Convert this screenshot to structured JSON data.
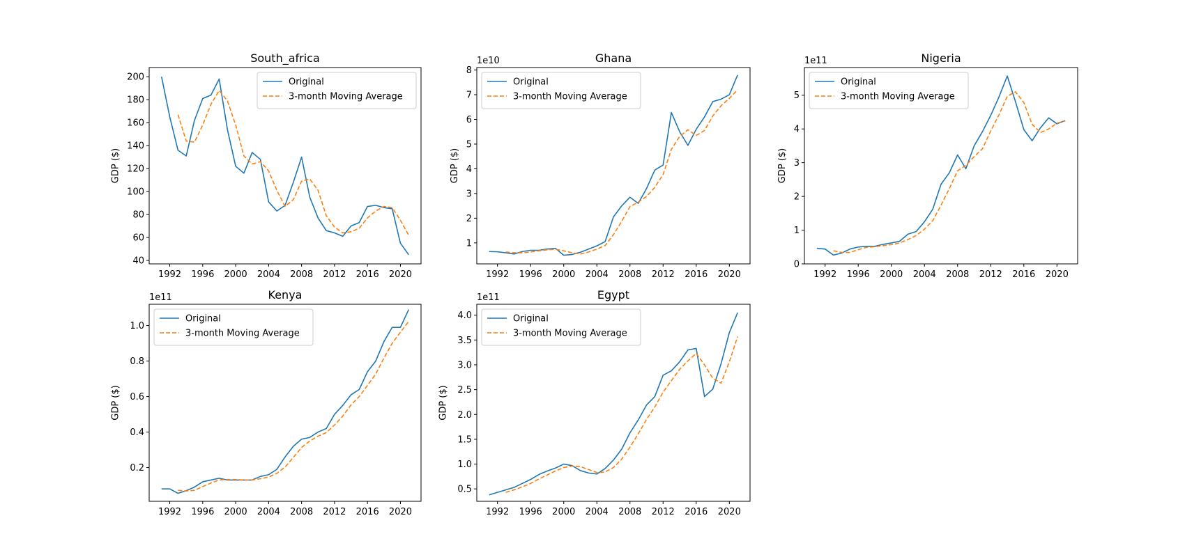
{
  "figure": {
    "legend_labels": [
      "Original",
      "3-month Moving Average"
    ],
    "colors": {
      "original": "#1f77b4",
      "moving_average": "#ff7f0e"
    }
  },
  "chart_data": [
    {
      "type": "line",
      "title": "South_africa",
      "ylabel": "GDP ($)",
      "offset_text": "",
      "xlim": [
        1989.5,
        2022.5
      ],
      "ylim": [
        37,
        208
      ],
      "x_ticks": [
        1992,
        1996,
        2000,
        2004,
        2008,
        2012,
        2016,
        2020
      ],
      "y_ticks": [
        40,
        60,
        80,
        100,
        120,
        140,
        160,
        180,
        200
      ],
      "y_tick_labels": [
        "40",
        "60",
        "80",
        "100",
        "120",
        "140",
        "160",
        "180",
        "200"
      ],
      "legend": "upper right",
      "x": [
        1991,
        1992,
        1993,
        1994,
        1995,
        1996,
        1997,
        1998,
        1999,
        2000,
        2001,
        2002,
        2003,
        2004,
        2005,
        2006,
        2007,
        2008,
        2009,
        2010,
        2011,
        2012,
        2013,
        2014,
        2015,
        2016,
        2017,
        2018,
        2019,
        2020,
        2021
      ],
      "series": [
        {
          "name": "Original",
          "style": "solid",
          "values": [
            200,
            165,
            136,
            131,
            162,
            181,
            184,
            198,
            154,
            122,
            116,
            134,
            128,
            91,
            83,
            88,
            108,
            130,
            95,
            77,
            66,
            64,
            61,
            70,
            73,
            87,
            88,
            86,
            85,
            55,
            45
          ]
        },
        {
          "name": "3-month Moving Average",
          "style": "dashed",
          "values": [
            null,
            null,
            167,
            144,
            143,
            158,
            176,
            188,
            179,
            158,
            131,
            124,
            126,
            118,
            101,
            87,
            93,
            109,
            111,
            101,
            79,
            69,
            64,
            65,
            68,
            77,
            83,
            87,
            86,
            75,
            62
          ]
        }
      ]
    },
    {
      "type": "line",
      "title": "Ghana",
      "ylabel": "GDP ($)",
      "offset_text": "1e10",
      "xlim": [
        1989.5,
        2022.5
      ],
      "ylim": [
        0.15,
        8.1
      ],
      "x_ticks": [
        1992,
        1996,
        2000,
        2004,
        2008,
        2012,
        2016,
        2020
      ],
      "y_ticks": [
        1,
        2,
        3,
        4,
        5,
        6,
        7,
        8
      ],
      "y_tick_labels": [
        "1",
        "2",
        "3",
        "4",
        "5",
        "6",
        "7",
        "8"
      ],
      "legend": "upper left",
      "x": [
        1991,
        1992,
        1993,
        1994,
        1995,
        1996,
        1997,
        1998,
        1999,
        2000,
        2001,
        2002,
        2003,
        2004,
        2005,
        2006,
        2007,
        2008,
        2009,
        2010,
        2011,
        2012,
        2013,
        2014,
        2015,
        2016,
        2017,
        2018,
        2019,
        2020,
        2021
      ],
      "series": [
        {
          "name": "Original",
          "style": "solid",
          "values": [
            0.65,
            0.64,
            0.6,
            0.55,
            0.65,
            0.7,
            0.7,
            0.75,
            0.78,
            0.5,
            0.53,
            0.62,
            0.75,
            0.88,
            1.05,
            2.05,
            2.5,
            2.85,
            2.6,
            3.2,
            3.95,
            4.15,
            6.28,
            5.5,
            4.95,
            5.6,
            6.1,
            6.72,
            6.82,
            7.0,
            7.8
          ]
        },
        {
          "name": "3-month Moving Average",
          "style": "dashed",
          "values": [
            null,
            null,
            0.63,
            0.6,
            0.6,
            0.63,
            0.68,
            0.72,
            0.74,
            0.68,
            0.6,
            0.55,
            0.63,
            0.75,
            0.89,
            1.33,
            1.87,
            2.47,
            2.65,
            2.88,
            3.25,
            3.77,
            4.79,
            5.31,
            5.58,
            5.35,
            5.55,
            6.14,
            6.55,
            6.85,
            7.2
          ]
        }
      ]
    },
    {
      "type": "line",
      "title": "Nigeria",
      "ylabel": "GDP ($)",
      "offset_text": "1e11",
      "xlim": [
        1989.5,
        2022.5
      ],
      "ylim": [
        0,
        5.82
      ],
      "x_ticks": [
        1992,
        1996,
        2000,
        2004,
        2008,
        2012,
        2016,
        2020
      ],
      "y_ticks": [
        0,
        1,
        2,
        3,
        4,
        5
      ],
      "y_tick_labels": [
        "0",
        "1",
        "2",
        "3",
        "4",
        "5"
      ],
      "legend": "upper left",
      "x": [
        1991,
        1992,
        1993,
        1994,
        1995,
        1996,
        1997,
        1998,
        1999,
        2000,
        2001,
        2002,
        2003,
        2004,
        2005,
        2006,
        2007,
        2008,
        2009,
        2010,
        2011,
        2012,
        2013,
        2014,
        2015,
        2016,
        2017,
        2018,
        2019,
        2020,
        2021
      ],
      "series": [
        {
          "name": "Original",
          "style": "solid",
          "values": [
            0.46,
            0.44,
            0.26,
            0.32,
            0.44,
            0.5,
            0.52,
            0.52,
            0.58,
            0.62,
            0.67,
            0.88,
            0.96,
            1.25,
            1.62,
            2.36,
            2.7,
            3.23,
            2.82,
            3.5,
            3.92,
            4.4,
            4.95,
            5.57,
            4.8,
            3.98,
            3.65,
            4.03,
            4.33,
            4.15,
            4.25
          ]
        },
        {
          "name": "3-month Moving Average",
          "style": "dashed",
          "values": [
            null,
            null,
            0.39,
            0.34,
            0.34,
            0.42,
            0.49,
            0.51,
            0.54,
            0.57,
            0.62,
            0.72,
            0.84,
            1.03,
            1.28,
            1.74,
            2.23,
            2.76,
            2.92,
            3.18,
            3.41,
            3.94,
            4.42,
            4.97,
            5.1,
            4.78,
            4.14,
            3.89,
            4.0,
            4.17,
            4.24
          ]
        }
      ]
    },
    {
      "type": "line",
      "title": "Kenya",
      "ylabel": "GDP ($)",
      "offset_text": "1e11",
      "xlim": [
        1989.5,
        2022.5
      ],
      "ylim": [
        0.01,
        1.12
      ],
      "x_ticks": [
        1992,
        1996,
        2000,
        2004,
        2008,
        2012,
        2016,
        2020
      ],
      "y_ticks": [
        0.2,
        0.4,
        0.6,
        0.8,
        1.0
      ],
      "y_tick_labels": [
        "0.2",
        "0.4",
        "0.6",
        "0.8",
        "1.0"
      ],
      "legend": "upper left",
      "x": [
        1991,
        1992,
        1993,
        1994,
        1995,
        1996,
        1997,
        1998,
        1999,
        2000,
        2001,
        2002,
        2003,
        2004,
        2005,
        2006,
        2007,
        2008,
        2009,
        2010,
        2011,
        2012,
        2013,
        2014,
        2015,
        2016,
        2017,
        2018,
        2019,
        2020,
        2021
      ],
      "series": [
        {
          "name": "Original",
          "style": "solid",
          "values": [
            0.08,
            0.08,
            0.055,
            0.07,
            0.09,
            0.12,
            0.13,
            0.14,
            0.13,
            0.13,
            0.13,
            0.13,
            0.15,
            0.16,
            0.19,
            0.26,
            0.32,
            0.36,
            0.37,
            0.4,
            0.42,
            0.5,
            0.55,
            0.61,
            0.64,
            0.74,
            0.8,
            0.91,
            0.99,
            0.99,
            1.09
          ]
        },
        {
          "name": "3-month Moving Average",
          "style": "dashed",
          "values": [
            null,
            null,
            0.072,
            0.068,
            0.072,
            0.093,
            0.113,
            0.13,
            0.133,
            0.133,
            0.13,
            0.13,
            0.137,
            0.147,
            0.167,
            0.203,
            0.257,
            0.313,
            0.35,
            0.377,
            0.397,
            0.44,
            0.49,
            0.553,
            0.6,
            0.663,
            0.727,
            0.817,
            0.9,
            0.963,
            1.023
          ]
        }
      ]
    },
    {
      "type": "line",
      "title": "Egypt",
      "ylabel": "GDP ($)",
      "offset_text": "1e11",
      "xlim": [
        1989.5,
        2022.5
      ],
      "ylim": [
        0.25,
        4.22
      ],
      "x_ticks": [
        1992,
        1996,
        2000,
        2004,
        2008,
        2012,
        2016,
        2020
      ],
      "y_ticks": [
        0.5,
        1.0,
        1.5,
        2.0,
        2.5,
        3.0,
        3.5,
        4.0
      ],
      "y_tick_labels": [
        "0.5",
        "1.0",
        "1.5",
        "2.0",
        "2.5",
        "3.0",
        "3.5",
        "4.0"
      ],
      "legend": "upper left",
      "x": [
        1991,
        1992,
        1993,
        1994,
        1995,
        1996,
        1997,
        1998,
        1999,
        2000,
        2001,
        2002,
        2003,
        2004,
        2005,
        2006,
        2007,
        2008,
        2009,
        2010,
        2011,
        2012,
        2013,
        2014,
        2015,
        2016,
        2017,
        2018,
        2019,
        2020,
        2021
      ],
      "series": [
        {
          "name": "Original",
          "style": "solid",
          "values": [
            0.38,
            0.43,
            0.48,
            0.53,
            0.61,
            0.69,
            0.79,
            0.86,
            0.92,
            1.0,
            0.97,
            0.87,
            0.82,
            0.8,
            0.91,
            1.08,
            1.3,
            1.63,
            1.89,
            2.19,
            2.36,
            2.79,
            2.88,
            3.06,
            3.3,
            3.33,
            2.36,
            2.51,
            3.02,
            3.65,
            4.05
          ]
        },
        {
          "name": "3-month Moving Average",
          "style": "dashed",
          "values": [
            null,
            null,
            0.43,
            0.48,
            0.54,
            0.61,
            0.7,
            0.78,
            0.86,
            0.93,
            0.96,
            0.95,
            0.89,
            0.83,
            0.84,
            0.93,
            1.1,
            1.34,
            1.61,
            1.9,
            2.15,
            2.45,
            2.68,
            2.91,
            3.08,
            3.23,
            3.0,
            2.73,
            2.63,
            3.06,
            3.57
          ]
        }
      ]
    }
  ]
}
